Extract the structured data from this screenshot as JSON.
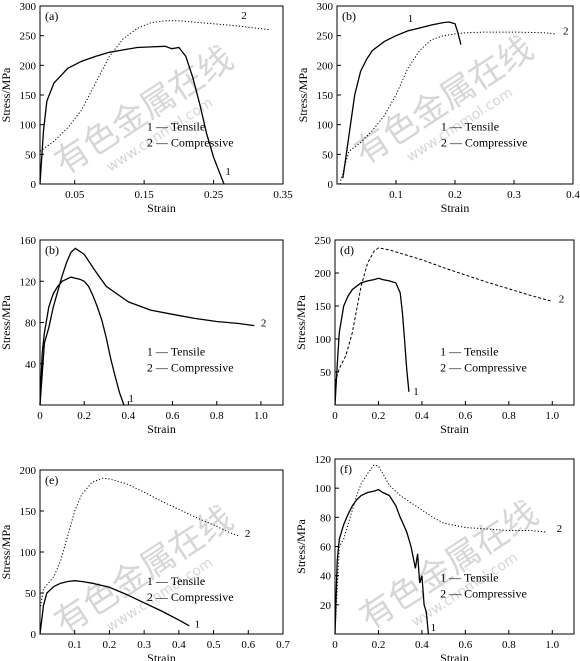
{
  "chart_data": [
    {
      "type": "line",
      "panel_tag": "(a)",
      "xlabel": "Strain",
      "ylabel": "Stress/MPa",
      "xlim": [
        0,
        0.35
      ],
      "ylim": [
        0,
        300
      ],
      "xticks": [
        0.05,
        0.15,
        0.25,
        0.35
      ],
      "xtick_labels": [
        "0.05",
        "0.15",
        "0.25",
        "0.35"
      ],
      "yticks": [
        0,
        50,
        100,
        150,
        200,
        250,
        300
      ],
      "ytick_labels": [
        "0",
        "50",
        "100",
        "150",
        "200",
        "250",
        "300"
      ],
      "legend": {
        "position": "lower-right",
        "entries": [
          "1 — Tensile",
          "2 — Compressive"
        ]
      },
      "series": [
        {
          "name": "1",
          "style": "solid",
          "x": [
            0,
            0.005,
            0.01,
            0.02,
            0.04,
            0.06,
            0.08,
            0.1,
            0.12,
            0.14,
            0.16,
            0.18,
            0.19,
            0.2,
            0.21,
            0.22,
            0.23,
            0.24,
            0.25,
            0.26,
            0.265
          ],
          "y": [
            0,
            90,
            140,
            170,
            195,
            207,
            215,
            222,
            226,
            230,
            231,
            232,
            228,
            230,
            215,
            180,
            135,
            85,
            45,
            15,
            0
          ]
        },
        {
          "name": "2",
          "style": "dotted",
          "x": [
            0,
            0.02,
            0.04,
            0.06,
            0.08,
            0.1,
            0.12,
            0.14,
            0.16,
            0.18,
            0.2,
            0.22,
            0.25,
            0.28,
            0.31,
            0.33
          ],
          "y": [
            55,
            72,
            95,
            125,
            170,
            215,
            245,
            262,
            272,
            275,
            275,
            273,
            270,
            267,
            263,
            260
          ]
        }
      ],
      "curve_labels": [
        {
          "text": "1",
          "x": 0.267,
          "y": 15
        },
        {
          "text": "2",
          "x": 0.29,
          "y": 278
        }
      ]
    },
    {
      "type": "line",
      "panel_tag": "(b)",
      "xlabel": "Strain",
      "ylabel": "Stress/MPa",
      "xlim": [
        0,
        0.4
      ],
      "ylim": [
        0,
        300
      ],
      "xticks": [
        0.1,
        0.2,
        0.3,
        0.4
      ],
      "xtick_labels": [
        "0.1",
        "0.2",
        "0.3",
        "0.4"
      ],
      "yticks": [
        0,
        50,
        100,
        150,
        200,
        250,
        300
      ],
      "ytick_labels": [
        "0",
        "50",
        "100",
        "150",
        "200",
        "250",
        "300"
      ],
      "legend": {
        "position": "lower-right",
        "entries": [
          "1 — Tensile",
          "2 — Compressive"
        ]
      },
      "series": [
        {
          "name": "1",
          "style": "solid",
          "x": [
            0.01,
            0.02,
            0.03,
            0.04,
            0.05,
            0.06,
            0.08,
            0.1,
            0.12,
            0.14,
            0.16,
            0.18,
            0.19,
            0.2,
            0.205,
            0.21
          ],
          "y": [
            10,
            80,
            150,
            190,
            210,
            225,
            240,
            250,
            258,
            263,
            268,
            272,
            273,
            270,
            255,
            235
          ]
        },
        {
          "name": "2",
          "style": "dotted",
          "x": [
            0.005,
            0.02,
            0.04,
            0.06,
            0.08,
            0.1,
            0.12,
            0.14,
            0.16,
            0.18,
            0.2,
            0.22,
            0.25,
            0.3,
            0.35,
            0.37
          ],
          "y": [
            0,
            55,
            70,
            90,
            115,
            150,
            195,
            225,
            243,
            250,
            253,
            255,
            256,
            256,
            255,
            253
          ]
        }
      ],
      "curve_labels": [
        {
          "text": "1",
          "x": 0.12,
          "y": 273
        },
        {
          "text": "2",
          "x": 0.383,
          "y": 252
        }
      ]
    },
    {
      "type": "line",
      "panel_tag": "(b)",
      "xlabel": "Strain",
      "ylabel": "Stress/MPa",
      "xlim": [
        0,
        1.1
      ],
      "ylim": [
        0,
        160
      ],
      "xticks": [
        0,
        0.2,
        0.4,
        0.6,
        0.8,
        1.0
      ],
      "xtick_labels": [
        "0",
        "0.2",
        "0.4",
        "0.6",
        "0.8",
        "1.0"
      ],
      "yticks": [
        40,
        80,
        120,
        160
      ],
      "ytick_labels": [
        "40",
        "80",
        "120",
        "160"
      ],
      "legend": {
        "position": "lower-right",
        "entries": [
          "1 — Tensile",
          "2 — Compressive"
        ]
      },
      "series": [
        {
          "name": "1",
          "style": "solid",
          "x": [
            0,
            0.01,
            0.02,
            0.04,
            0.06,
            0.08,
            0.1,
            0.12,
            0.14,
            0.16,
            0.18,
            0.2,
            0.22,
            0.24,
            0.26,
            0.28,
            0.3,
            0.32,
            0.34,
            0.36,
            0.38
          ],
          "y": [
            0,
            50,
            70,
            95,
            108,
            115,
            120,
            122,
            124,
            123,
            122,
            120,
            115,
            106,
            95,
            82,
            65,
            45,
            28,
            12,
            0
          ]
        },
        {
          "name": "2",
          "style": "solid",
          "x": [
            0,
            0.02,
            0.04,
            0.06,
            0.08,
            0.1,
            0.12,
            0.14,
            0.16,
            0.2,
            0.25,
            0.3,
            0.4,
            0.5,
            0.6,
            0.7,
            0.8,
            0.9,
            0.97
          ],
          "y": [
            0,
            60,
            75,
            95,
            110,
            125,
            138,
            148,
            152,
            146,
            130,
            115,
            100,
            92,
            88,
            84,
            81,
            79,
            77
          ]
        }
      ],
      "curve_labels": [
        {
          "text": "1",
          "x": 0.4,
          "y": 3
        },
        {
          "text": "2",
          "x": 1.0,
          "y": 76
        }
      ]
    },
    {
      "type": "line",
      "panel_tag": "(d)",
      "xlabel": "Strain",
      "ylabel": "Stress/MPa",
      "xlim": [
        0,
        1.1
      ],
      "ylim": [
        0,
        250
      ],
      "xticks": [
        0,
        0.2,
        0.4,
        0.6,
        0.8,
        1.0
      ],
      "xtick_labels": [
        "0",
        "0.2",
        "0.4",
        "0.6",
        "0.8",
        "1.0"
      ],
      "yticks": [
        50,
        100,
        150,
        200,
        250
      ],
      "ytick_labels": [
        "50",
        "100",
        "150",
        "200",
        "250"
      ],
      "legend": {
        "position": "lower-right",
        "entries": [
          "1 — Tensile",
          "2 — Compressive"
        ]
      },
      "series": [
        {
          "name": "1",
          "style": "solid",
          "x": [
            0,
            0.01,
            0.02,
            0.04,
            0.06,
            0.08,
            0.1,
            0.12,
            0.15,
            0.18,
            0.2,
            0.22,
            0.25,
            0.28,
            0.3,
            0.31,
            0.32,
            0.33,
            0.34
          ],
          "y": [
            0,
            60,
            110,
            150,
            165,
            175,
            180,
            185,
            188,
            190,
            192,
            190,
            188,
            185,
            170,
            140,
            100,
            55,
            20
          ]
        },
        {
          "name": "2",
          "style": "dashed",
          "x": [
            0,
            0.02,
            0.05,
            0.08,
            0.1,
            0.12,
            0.15,
            0.18,
            0.2,
            0.25,
            0.3,
            0.4,
            0.5,
            0.6,
            0.7,
            0.8,
            0.9,
            1.0
          ],
          "y": [
            35,
            55,
            75,
            110,
            145,
            180,
            215,
            233,
            238,
            235,
            230,
            220,
            208,
            197,
            186,
            176,
            166,
            157
          ]
        }
      ],
      "curve_labels": [
        {
          "text": "1",
          "x": 0.36,
          "y": 15
        },
        {
          "text": "2",
          "x": 1.03,
          "y": 155
        }
      ]
    },
    {
      "type": "line",
      "panel_tag": "(e)",
      "xlabel": "Strain",
      "ylabel": "Stress/MPa",
      "xlim": [
        0,
        0.7
      ],
      "ylim": [
        0,
        200
      ],
      "xticks": [
        0.1,
        0.2,
        0.3,
        0.4,
        0.5,
        0.6,
        0.7
      ],
      "xtick_labels": [
        "0.1",
        "0.2",
        "0.3",
        "0.4",
        "0.5",
        "0.6",
        "0.7"
      ],
      "yticks": [
        0,
        50,
        100,
        150,
        200
      ],
      "ytick_labels": [
        "0",
        "50",
        "100",
        "150",
        "200"
      ],
      "legend": {
        "position": "lower-right",
        "entries": [
          "1 — Tensile",
          "2 — Compressive"
        ]
      },
      "series": [
        {
          "name": "1",
          "style": "solid",
          "x": [
            0,
            0.01,
            0.02,
            0.04,
            0.06,
            0.08,
            0.1,
            0.12,
            0.15,
            0.2,
            0.25,
            0.3,
            0.35,
            0.4,
            0.43
          ],
          "y": [
            0,
            35,
            50,
            58,
            62,
            64,
            65,
            64,
            62,
            57,
            48,
            38,
            28,
            17,
            10
          ]
        },
        {
          "name": "2",
          "style": "dotted",
          "x": [
            0,
            0.01,
            0.02,
            0.04,
            0.06,
            0.08,
            0.1,
            0.12,
            0.15,
            0.18,
            0.2,
            0.25,
            0.3,
            0.35,
            0.4,
            0.45,
            0.5,
            0.55,
            0.57
          ],
          "y": [
            30,
            55,
            60,
            70,
            90,
            120,
            150,
            170,
            185,
            190,
            189,
            183,
            173,
            162,
            152,
            142,
            133,
            123,
            120
          ]
        }
      ],
      "curve_labels": [
        {
          "text": "1",
          "x": 0.445,
          "y": 8
        },
        {
          "text": "2",
          "x": 0.59,
          "y": 118
        }
      ]
    },
    {
      "type": "line",
      "panel_tag": "(f)",
      "xlabel": "Strain",
      "ylabel": "Stress/MPa",
      "xlim": [
        0,
        1.1
      ],
      "ylim": [
        0,
        120
      ],
      "xticks": [
        0,
        0.2,
        0.4,
        0.6,
        0.8,
        1.0
      ],
      "xtick_labels": [
        "0",
        "0.2",
        "0.4",
        "0.6",
        "0.8",
        "1.0"
      ],
      "yticks": [
        20,
        40,
        60,
        80,
        100,
        120
      ],
      "ytick_labels": [
        "20",
        "40",
        "60",
        "80",
        "100",
        "120"
      ],
      "legend": {
        "position": "lower-right",
        "entries": [
          "1 — Tensile",
          "2 — Compressive"
        ]
      },
      "series": [
        {
          "name": "1",
          "style": "solid",
          "x": [
            0,
            0.01,
            0.02,
            0.04,
            0.06,
            0.08,
            0.1,
            0.12,
            0.15,
            0.18,
            0.2,
            0.22,
            0.25,
            0.28,
            0.3,
            0.33,
            0.35,
            0.37,
            0.38,
            0.39,
            0.4,
            0.41,
            0.42,
            0.43
          ],
          "y": [
            0,
            50,
            65,
            75,
            82,
            88,
            92,
            95,
            97,
            98,
            99,
            97,
            95,
            88,
            80,
            70,
            60,
            45,
            55,
            35,
            40,
            20,
            15,
            0
          ]
        },
        {
          "name": "2",
          "style": "dotted",
          "x": [
            0,
            0.02,
            0.04,
            0.06,
            0.08,
            0.1,
            0.12,
            0.15,
            0.18,
            0.2,
            0.22,
            0.25,
            0.3,
            0.35,
            0.4,
            0.45,
            0.5,
            0.6,
            0.7,
            0.8,
            0.9,
            0.97
          ],
          "y": [
            0,
            60,
            65,
            75,
            85,
            95,
            103,
            110,
            116,
            115,
            110,
            102,
            95,
            90,
            85,
            80,
            76,
            73,
            72,
            71,
            71,
            70
          ]
        }
      ],
      "curve_labels": [
        {
          "text": "1",
          "x": 0.44,
          "y": 2
        },
        {
          "text": "2",
          "x": 1.02,
          "y": 70
        }
      ]
    }
  ],
  "watermark": {
    "cn": "有色金属在线",
    "url": "www.cnnmol.com"
  }
}
